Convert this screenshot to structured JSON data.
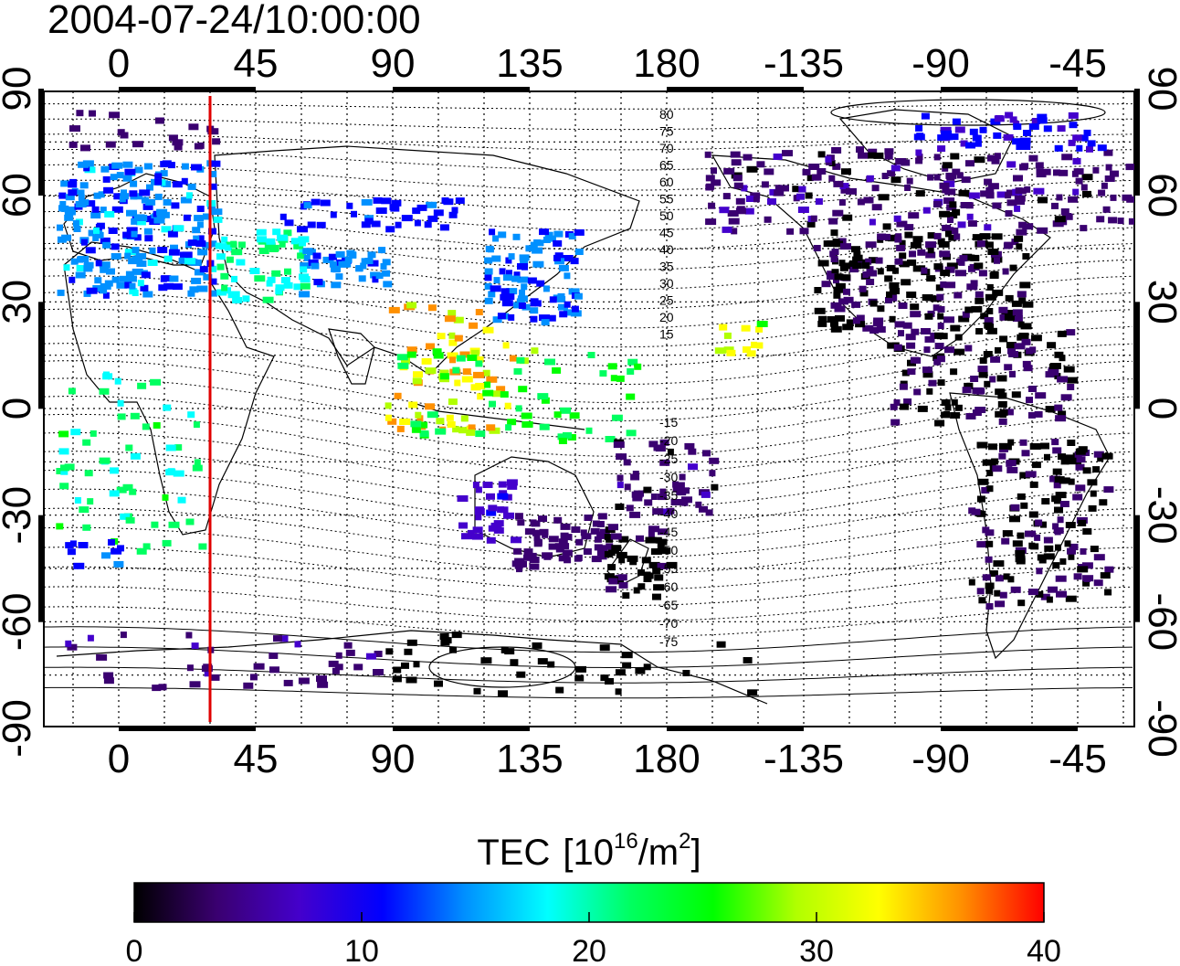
{
  "title": "2004-07-24/10:00:00",
  "map": {
    "x_ticks": [
      "0",
      "45",
      "90",
      "135",
      "180",
      "-135",
      "-90",
      "-45"
    ],
    "y_ticks": [
      "90",
      "60",
      "30",
      "0",
      "-30",
      "-60",
      "-90"
    ],
    "mlat_labels_north": [
      "80",
      "75",
      "70",
      "65",
      "60",
      "55",
      "50",
      "45",
      "40",
      "35",
      "30",
      "25",
      "20",
      "15"
    ],
    "mlat_labels_south": [
      "-15",
      "-20",
      "-25",
      "-30",
      "-35",
      "-40",
      "-45",
      "-50",
      "-55",
      "-60",
      "-65",
      "-70",
      "-75"
    ],
    "meridian_marker_color": "#e00000",
    "meridian_marker_longitude": 30
  },
  "colorbar": {
    "label": "TEC",
    "unit": "[10",
    "unit_sup": "16",
    "unit_mid": "/m",
    "unit_sup2": "2",
    "unit_end": "]",
    "ticks": [
      "0",
      "10",
      "20",
      "30",
      "40"
    ],
    "min": 0,
    "max": 40,
    "colors": [
      "#000000",
      "#3a0070",
      "#4400cc",
      "#0000ff",
      "#0090ff",
      "#00ffff",
      "#00ff60",
      "#00ff00",
      "#b0ff00",
      "#ffff00",
      "#ff9000",
      "#ff0000"
    ]
  }
}
